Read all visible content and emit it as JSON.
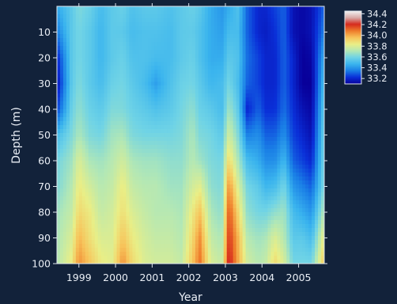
{
  "chart_data": {
    "type": "heatmap",
    "xlabel": "Year",
    "ylabel": "Depth (m)",
    "x_ticks": [
      "1999",
      "2000",
      "2001",
      "2002",
      "2003",
      "2004",
      "2005"
    ],
    "y_ticks": [
      "10",
      "20",
      "30",
      "40",
      "50",
      "60",
      "70",
      "80",
      "90",
      "100"
    ],
    "xlim": [
      1998.4,
      2005.7
    ],
    "ylim": [
      100,
      0
    ],
    "y_inverted": true,
    "colorbar": {
      "ticks": [
        "34.4",
        "34.2",
        "34.0",
        "33.8",
        "33.6",
        "33.4",
        "33.2"
      ],
      "range": [
        33.1,
        34.45
      ],
      "colors_low_to_high": [
        "#08009a",
        "#0a2fd8",
        "#1a7fe6",
        "#3ab4ee",
        "#6fd3e6",
        "#b4e8b4",
        "#e9ee86",
        "#f7c35a",
        "#ee7d2b",
        "#d62a1e",
        "#d8aaa8",
        "#f2f2f2"
      ]
    },
    "x": [
      1998.4,
      1998.8,
      1999.0,
      1999.3,
      1999.6,
      1999.9,
      2000.2,
      2000.45,
      2000.8,
      2001.1,
      2001.5,
      2001.8,
      2002.1,
      2002.3,
      2002.6,
      2002.9,
      2003.1,
      2003.35,
      2003.6,
      2003.9,
      2004.1,
      2004.35,
      2004.6,
      2004.85,
      2005.1,
      2005.35,
      2005.7
    ],
    "depths": [
      0,
      10,
      20,
      30,
      40,
      50,
      60,
      70,
      80,
      90,
      100
    ],
    "z": [
      [
        33.45,
        33.55,
        33.62,
        33.58,
        33.5,
        33.55,
        33.58,
        33.52,
        33.55,
        33.55,
        33.52,
        33.55,
        33.58,
        33.55,
        33.45,
        33.4,
        33.45,
        33.52,
        33.3,
        33.2,
        33.2,
        33.25,
        33.3,
        33.15,
        33.12,
        33.15,
        33.3
      ],
      [
        33.35,
        33.55,
        33.6,
        33.55,
        33.48,
        33.55,
        33.55,
        33.5,
        33.52,
        33.52,
        33.5,
        33.55,
        33.56,
        33.52,
        33.45,
        33.42,
        33.5,
        33.5,
        33.3,
        33.2,
        33.18,
        33.22,
        33.3,
        33.15,
        33.12,
        33.15,
        33.35
      ],
      [
        33.2,
        33.55,
        33.6,
        33.55,
        33.48,
        33.55,
        33.58,
        33.52,
        33.52,
        33.5,
        33.5,
        33.55,
        33.58,
        33.52,
        33.45,
        33.45,
        33.55,
        33.52,
        33.32,
        33.25,
        33.2,
        33.2,
        33.3,
        33.2,
        33.1,
        33.12,
        33.45
      ],
      [
        33.15,
        33.55,
        33.62,
        33.55,
        33.5,
        33.58,
        33.6,
        33.55,
        33.5,
        33.42,
        33.52,
        33.58,
        33.6,
        33.55,
        33.48,
        33.5,
        33.6,
        33.5,
        33.3,
        33.25,
        33.2,
        33.2,
        33.3,
        33.2,
        33.1,
        33.1,
        33.5
      ],
      [
        33.25,
        33.58,
        33.65,
        33.58,
        33.55,
        33.62,
        33.62,
        33.58,
        33.55,
        33.52,
        33.55,
        33.6,
        33.65,
        33.58,
        33.55,
        33.5,
        33.68,
        33.55,
        33.2,
        33.3,
        33.22,
        33.22,
        33.32,
        33.22,
        33.15,
        33.12,
        33.55
      ],
      [
        33.5,
        33.62,
        33.7,
        33.62,
        33.6,
        33.68,
        33.7,
        33.62,
        33.6,
        33.6,
        33.6,
        33.62,
        33.7,
        33.62,
        33.6,
        33.55,
        33.78,
        33.62,
        33.35,
        33.38,
        33.3,
        33.3,
        33.38,
        33.25,
        33.2,
        33.15,
        33.58
      ],
      [
        33.6,
        33.68,
        33.8,
        33.7,
        33.68,
        33.72,
        33.78,
        33.7,
        33.68,
        33.68,
        33.65,
        33.65,
        33.72,
        33.68,
        33.62,
        33.6,
        33.9,
        33.7,
        33.5,
        33.45,
        33.38,
        33.38,
        33.48,
        33.3,
        33.25,
        33.2,
        33.6
      ],
      [
        33.62,
        33.72,
        33.85,
        33.78,
        33.72,
        33.75,
        33.85,
        33.75,
        33.72,
        33.72,
        33.68,
        33.68,
        33.78,
        33.82,
        33.65,
        33.62,
        34.05,
        33.8,
        33.6,
        33.55,
        33.48,
        33.5,
        33.6,
        33.4,
        33.35,
        33.3,
        33.62
      ],
      [
        33.68,
        33.75,
        33.9,
        33.85,
        33.75,
        33.78,
        33.88,
        33.8,
        33.75,
        33.72,
        33.72,
        33.7,
        33.85,
        33.95,
        33.7,
        33.65,
        34.15,
        33.9,
        33.65,
        33.6,
        33.6,
        33.65,
        33.68,
        33.5,
        33.45,
        33.4,
        33.72
      ],
      [
        33.7,
        33.8,
        33.98,
        33.88,
        33.8,
        33.8,
        33.95,
        33.85,
        33.78,
        33.75,
        33.75,
        33.72,
        33.9,
        34.05,
        33.75,
        33.7,
        34.2,
        33.98,
        33.72,
        33.68,
        33.7,
        33.8,
        33.72,
        33.55,
        33.55,
        33.5,
        33.85
      ],
      [
        33.72,
        33.85,
        34.05,
        33.95,
        33.85,
        33.82,
        34.05,
        33.9,
        33.8,
        33.78,
        33.78,
        33.75,
        33.95,
        34.1,
        33.8,
        33.75,
        34.25,
        34.0,
        33.78,
        33.72,
        33.75,
        33.9,
        33.8,
        33.6,
        33.6,
        33.6,
        33.95
      ]
    ]
  }
}
